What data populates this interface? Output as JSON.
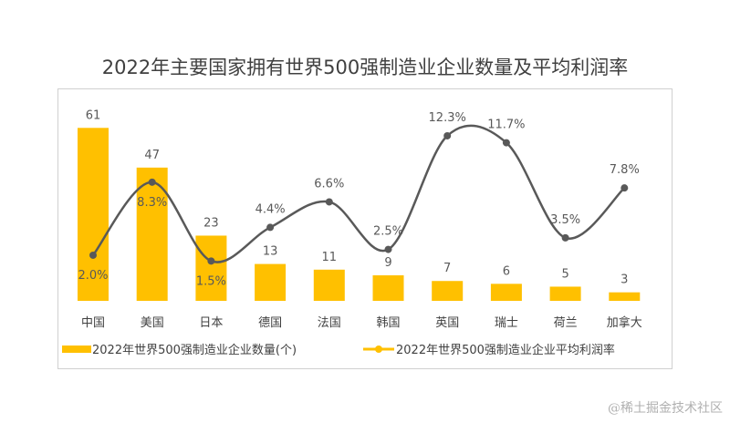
{
  "watermark": "@稀土掘金技术社区",
  "chart_data": {
    "type": "bar+line",
    "title": "2022年主要国家拥有世界500强制造业企业数量及平均利润率",
    "categories": [
      "中国",
      "美国",
      "日本",
      "德国",
      "法国",
      "韩国",
      "英国",
      "瑞士",
      "荷兰",
      "加拿大"
    ],
    "series": [
      {
        "name": "2022年世界500强制造业企业数量(个)",
        "type": "bar",
        "color": "#FFC000",
        "values": [
          61,
          47,
          23,
          13,
          11,
          9,
          7,
          6,
          5,
          3
        ]
      },
      {
        "name": "2022年世界500强制造业企业平均利润率",
        "type": "line",
        "color": "#595959",
        "legend_color": "#FFC000",
        "values": [
          2.0,
          8.3,
          1.5,
          4.4,
          6.6,
          2.5,
          12.3,
          11.7,
          3.5,
          7.8
        ],
        "labels": [
          "2.0%",
          "8.3%",
          "1.5%",
          "4.4%",
          "6.6%",
          "2.5%",
          "12.3%",
          "11.7%",
          "3.5%",
          "7.8%"
        ]
      }
    ],
    "xlabel": "",
    "ylabel": "",
    "grid": false,
    "legend": "bottom"
  }
}
